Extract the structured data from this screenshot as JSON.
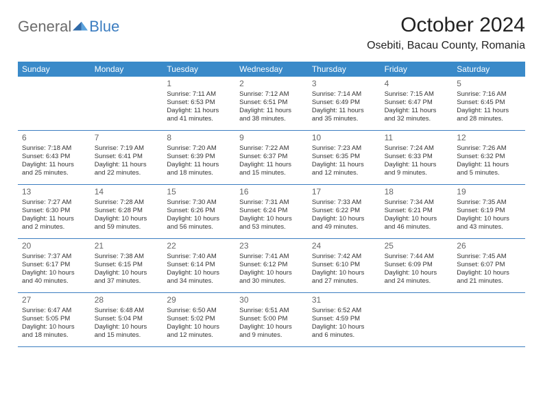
{
  "logo": {
    "general": "General",
    "blue": "Blue"
  },
  "title": "October 2024",
  "location": "Osebiti, Bacau County, Romania",
  "colors": {
    "header_bg": "#3a8ac9",
    "header_text": "#ffffff",
    "rule": "#3a7cc0",
    "logo_gray": "#6b6b6b",
    "logo_blue": "#3a7cc0",
    "text": "#333333",
    "daynum": "#666666",
    "background": "#ffffff"
  },
  "day_names": [
    "Sunday",
    "Monday",
    "Tuesday",
    "Wednesday",
    "Thursday",
    "Friday",
    "Saturday"
  ],
  "weeks": [
    [
      null,
      null,
      {
        "n": "1",
        "sr": "7:11 AM",
        "ss": "6:53 PM",
        "dl": "11 hours and 41 minutes."
      },
      {
        "n": "2",
        "sr": "7:12 AM",
        "ss": "6:51 PM",
        "dl": "11 hours and 38 minutes."
      },
      {
        "n": "3",
        "sr": "7:14 AM",
        "ss": "6:49 PM",
        "dl": "11 hours and 35 minutes."
      },
      {
        "n": "4",
        "sr": "7:15 AM",
        "ss": "6:47 PM",
        "dl": "11 hours and 32 minutes."
      },
      {
        "n": "5",
        "sr": "7:16 AM",
        "ss": "6:45 PM",
        "dl": "11 hours and 28 minutes."
      }
    ],
    [
      {
        "n": "6",
        "sr": "7:18 AM",
        "ss": "6:43 PM",
        "dl": "11 hours and 25 minutes."
      },
      {
        "n": "7",
        "sr": "7:19 AM",
        "ss": "6:41 PM",
        "dl": "11 hours and 22 minutes."
      },
      {
        "n": "8",
        "sr": "7:20 AM",
        "ss": "6:39 PM",
        "dl": "11 hours and 18 minutes."
      },
      {
        "n": "9",
        "sr": "7:22 AM",
        "ss": "6:37 PM",
        "dl": "11 hours and 15 minutes."
      },
      {
        "n": "10",
        "sr": "7:23 AM",
        "ss": "6:35 PM",
        "dl": "11 hours and 12 minutes."
      },
      {
        "n": "11",
        "sr": "7:24 AM",
        "ss": "6:33 PM",
        "dl": "11 hours and 9 minutes."
      },
      {
        "n": "12",
        "sr": "7:26 AM",
        "ss": "6:32 PM",
        "dl": "11 hours and 5 minutes."
      }
    ],
    [
      {
        "n": "13",
        "sr": "7:27 AM",
        "ss": "6:30 PM",
        "dl": "11 hours and 2 minutes."
      },
      {
        "n": "14",
        "sr": "7:28 AM",
        "ss": "6:28 PM",
        "dl": "10 hours and 59 minutes."
      },
      {
        "n": "15",
        "sr": "7:30 AM",
        "ss": "6:26 PM",
        "dl": "10 hours and 56 minutes."
      },
      {
        "n": "16",
        "sr": "7:31 AM",
        "ss": "6:24 PM",
        "dl": "10 hours and 53 minutes."
      },
      {
        "n": "17",
        "sr": "7:33 AM",
        "ss": "6:22 PM",
        "dl": "10 hours and 49 minutes."
      },
      {
        "n": "18",
        "sr": "7:34 AM",
        "ss": "6:21 PM",
        "dl": "10 hours and 46 minutes."
      },
      {
        "n": "19",
        "sr": "7:35 AM",
        "ss": "6:19 PM",
        "dl": "10 hours and 43 minutes."
      }
    ],
    [
      {
        "n": "20",
        "sr": "7:37 AM",
        "ss": "6:17 PM",
        "dl": "10 hours and 40 minutes."
      },
      {
        "n": "21",
        "sr": "7:38 AM",
        "ss": "6:15 PM",
        "dl": "10 hours and 37 minutes."
      },
      {
        "n": "22",
        "sr": "7:40 AM",
        "ss": "6:14 PM",
        "dl": "10 hours and 34 minutes."
      },
      {
        "n": "23",
        "sr": "7:41 AM",
        "ss": "6:12 PM",
        "dl": "10 hours and 30 minutes."
      },
      {
        "n": "24",
        "sr": "7:42 AM",
        "ss": "6:10 PM",
        "dl": "10 hours and 27 minutes."
      },
      {
        "n": "25",
        "sr": "7:44 AM",
        "ss": "6:09 PM",
        "dl": "10 hours and 24 minutes."
      },
      {
        "n": "26",
        "sr": "7:45 AM",
        "ss": "6:07 PM",
        "dl": "10 hours and 21 minutes."
      }
    ],
    [
      {
        "n": "27",
        "sr": "6:47 AM",
        "ss": "5:05 PM",
        "dl": "10 hours and 18 minutes."
      },
      {
        "n": "28",
        "sr": "6:48 AM",
        "ss": "5:04 PM",
        "dl": "10 hours and 15 minutes."
      },
      {
        "n": "29",
        "sr": "6:50 AM",
        "ss": "5:02 PM",
        "dl": "10 hours and 12 minutes."
      },
      {
        "n": "30",
        "sr": "6:51 AM",
        "ss": "5:00 PM",
        "dl": "10 hours and 9 minutes."
      },
      {
        "n": "31",
        "sr": "6:52 AM",
        "ss": "4:59 PM",
        "dl": "10 hours and 6 minutes."
      },
      null,
      null
    ]
  ],
  "labels": {
    "sunrise": "Sunrise:",
    "sunset": "Sunset:",
    "daylight": "Daylight:"
  }
}
